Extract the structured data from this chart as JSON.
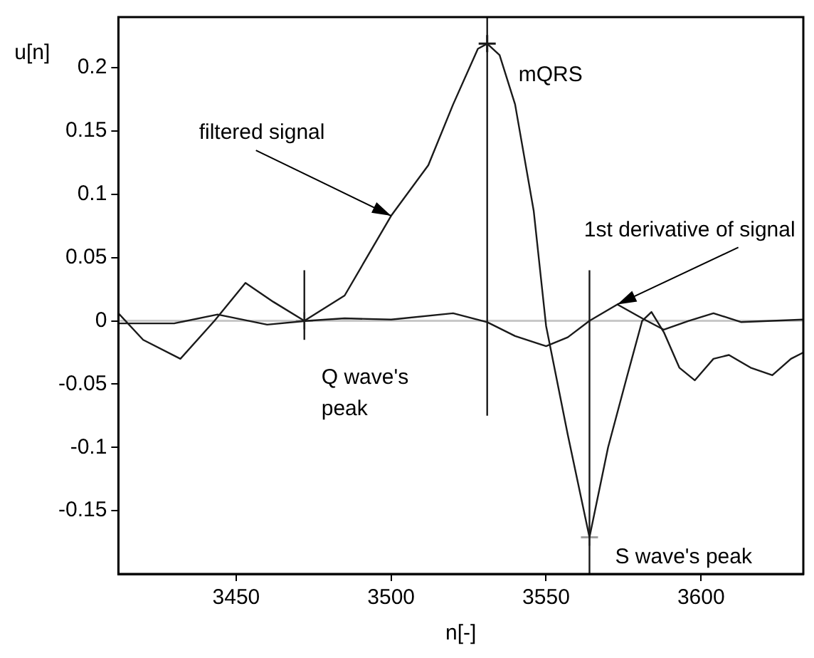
{
  "chart_data": {
    "type": "line",
    "xlabel": "n[-]",
    "ylabel": "u[n]",
    "xlim": [
      3412,
      3633
    ],
    "ylim": [
      -0.2,
      0.24
    ],
    "xticks": [
      3450,
      3500,
      3550,
      3600
    ],
    "yticks": [
      -0.15,
      -0.1,
      -0.05,
      0,
      0.05,
      0.1,
      0.15,
      0.2
    ],
    "grid": false,
    "legend": false,
    "series": [
      {
        "color": "#1a1a1a",
        "x": [
          3412,
          3420,
          3432,
          3443,
          3453,
          3462,
          3472,
          3485,
          3500,
          3512,
          3520,
          3528,
          3531,
          3535,
          3540,
          3546,
          3550,
          3557,
          3564,
          3570,
          3576,
          3581,
          3584,
          3588,
          3593,
          3598,
          3604,
          3609,
          3616,
          3623,
          3629,
          3633
        ],
        "values": [
          0.006,
          -0.015,
          -0.03,
          0.0,
          0.03,
          0.015,
          0.0,
          0.02,
          0.083,
          0.123,
          0.171,
          0.215,
          0.219,
          0.21,
          0.171,
          0.087,
          -0.004,
          -0.09,
          -0.171,
          -0.1,
          -0.045,
          0.0,
          0.007,
          -0.009,
          -0.037,
          -0.047,
          -0.03,
          -0.027,
          -0.037,
          -0.043,
          -0.03,
          -0.025
        ]
      },
      {
        "color": "#1a1a1a",
        "x": [
          3412,
          3430,
          3444,
          3460,
          3473,
          3485,
          3500,
          3520,
          3531,
          3540,
          3550,
          3557,
          3564,
          3573,
          3581,
          3588,
          3596,
          3604,
          3613,
          3633
        ],
        "values": [
          -0.002,
          -0.002,
          0.005,
          -0.003,
          0.0,
          0.002,
          0.001,
          0.006,
          -0.001,
          -0.012,
          -0.02,
          -0.013,
          0.0,
          0.013,
          0.002,
          -0.007,
          0.0,
          0.006,
          -0.001,
          0.001
        ]
      },
      {
        "type": "line",
        "color": "#1a1a1a",
        "x": [
          3472,
          3472
        ],
        "values": [
          -0.015,
          0.04
        ]
      },
      {
        "type": "line",
        "color": "#1a1a1a",
        "x": [
          3531,
          3531
        ],
        "values": [
          -0.075,
          0.24
        ]
      },
      {
        "type": "line",
        "color": "#1a1a1a",
        "x": [
          3564,
          3564
        ],
        "values": [
          -0.2,
          0.04
        ]
      },
      {
        "type": "scatter",
        "color": "#1a1a1a",
        "marker": "cross",
        "x": [
          3531
        ],
        "values": [
          0.219
        ]
      },
      {
        "type": "scatter",
        "color": "#a0a0a0",
        "marker": "cross",
        "x": [
          3472,
          3564
        ],
        "values": [
          0.0,
          -0.171
        ]
      }
    ],
    "ref_lines": [
      {
        "axis": "y",
        "value": 0,
        "color": "#c8c8c8"
      }
    ],
    "annotations": [
      {
        "text": "mQRS",
        "x": 3531,
        "y": 0.219
      },
      {
        "text": "filtered signal",
        "x": 3500,
        "y": 0.083
      },
      {
        "text": "Q wave's peak",
        "x": 3472,
        "y": 0
      },
      {
        "text": "S wave's peak",
        "x": 3564,
        "y": -0.171
      },
      {
        "text": "1st derivative of signal",
        "x": 3573,
        "y": 0.013
      }
    ]
  }
}
